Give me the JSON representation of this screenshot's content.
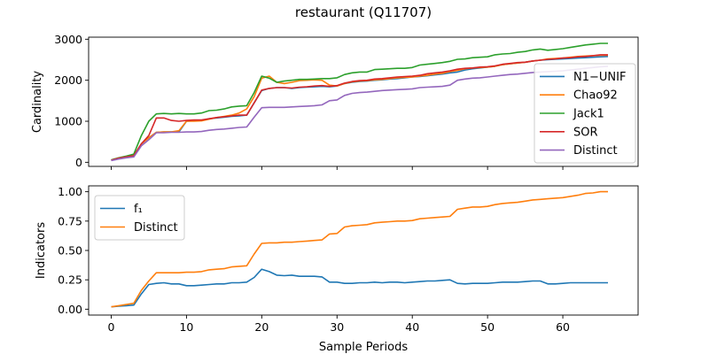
{
  "figure": {
    "title": "restaurant (Q11707)"
  },
  "chart_data": [
    {
      "type": "line",
      "xlabel": "",
      "ylabel": "Cardinality",
      "xlim": [
        -3,
        70
      ],
      "ylim": [
        -100,
        3050
      ],
      "xticks": [
        0,
        10,
        20,
        30,
        40,
        50,
        60
      ],
      "yticks": [
        0,
        1000,
        2000,
        3000
      ],
      "show_xtick_labels": false,
      "grid": false,
      "legend": "lower-right",
      "series": [
        {
          "name": "N1−UNIF",
          "color": "#1f77b4",
          "values": [
            50,
            100,
            130,
            160,
            450,
            600,
            730,
            740,
            740,
            740,
            1000,
            1010,
            1020,
            1060,
            1080,
            1100,
            1120,
            1130,
            1150,
            1450,
            1750,
            1800,
            1820,
            1820,
            1800,
            1820,
            1830,
            1840,
            1850,
            1840,
            1860,
            1920,
            1950,
            1970,
            1980,
            2000,
            2010,
            2030,
            2040,
            2060,
            2080,
            2090,
            2110,
            2130,
            2150,
            2180,
            2200,
            2250,
            2280,
            2300,
            2320,
            2340,
            2380,
            2400,
            2420,
            2440,
            2470,
            2490,
            2500,
            2510,
            2520,
            2530,
            2540,
            2550,
            2560,
            2570,
            2580
          ]
        },
        {
          "name": "Chao92",
          "color": "#ff7f0e",
          "values": [
            50,
            100,
            130,
            160,
            450,
            600,
            730,
            740,
            740,
            770,
            1000,
            1000,
            1010,
            1050,
            1090,
            1120,
            1150,
            1200,
            1300,
            1600,
            2050,
            2100,
            1950,
            1920,
            1950,
            1990,
            2000,
            2010,
            2000,
            1880,
            1860,
            1920,
            1960,
            1980,
            1990,
            2010,
            2020,
            2040,
            2060,
            2070,
            2080,
            2100,
            2120,
            2150,
            2170,
            2210,
            2240,
            2280,
            2300,
            2310,
            2320,
            2340,
            2380,
            2400,
            2420,
            2440,
            2470,
            2490,
            2520,
            2530,
            2540,
            2560,
            2580,
            2590,
            2600,
            2610,
            2610
          ]
        },
        {
          "name": "Jack1",
          "color": "#2ca02c",
          "values": [
            60,
            110,
            150,
            200,
            650,
            1000,
            1180,
            1190,
            1180,
            1190,
            1180,
            1180,
            1200,
            1260,
            1270,
            1300,
            1350,
            1370,
            1380,
            1700,
            2100,
            2050,
            1950,
            1980,
            2000,
            2020,
            2020,
            2030,
            2040,
            2040,
            2060,
            2140,
            2180,
            2200,
            2200,
            2260,
            2270,
            2280,
            2290,
            2290,
            2310,
            2370,
            2390,
            2410,
            2430,
            2460,
            2510,
            2520,
            2550,
            2560,
            2570,
            2620,
            2640,
            2650,
            2680,
            2700,
            2740,
            2760,
            2730,
            2750,
            2770,
            2800,
            2830,
            2860,
            2880,
            2900,
            2900
          ]
        },
        {
          "name": "SOR",
          "color": "#d62728",
          "values": [
            50,
            100,
            130,
            160,
            450,
            650,
            1080,
            1080,
            1020,
            1000,
            1020,
            1030,
            1030,
            1060,
            1090,
            1110,
            1130,
            1150,
            1150,
            1450,
            1760,
            1800,
            1820,
            1820,
            1810,
            1830,
            1840,
            1860,
            1870,
            1850,
            1870,
            1930,
            1970,
            1990,
            2000,
            2030,
            2040,
            2060,
            2080,
            2090,
            2100,
            2120,
            2160,
            2180,
            2200,
            2230,
            2270,
            2290,
            2300,
            2320,
            2330,
            2350,
            2390,
            2410,
            2430,
            2440,
            2470,
            2490,
            2510,
            2520,
            2540,
            2550,
            2570,
            2580,
            2600,
            2620,
            2620
          ]
        },
        {
          "name": "Distinct",
          "color": "#9467bd",
          "values": [
            40,
            80,
            110,
            130,
            400,
            550,
            720,
            720,
            730,
            730,
            740,
            740,
            750,
            780,
            800,
            810,
            830,
            850,
            860,
            1100,
            1330,
            1340,
            1340,
            1340,
            1350,
            1360,
            1370,
            1380,
            1400,
            1500,
            1520,
            1630,
            1680,
            1700,
            1710,
            1730,
            1750,
            1760,
            1770,
            1780,
            1790,
            1820,
            1830,
            1840,
            1850,
            1880,
            2000,
            2030,
            2050,
            2060,
            2080,
            2100,
            2120,
            2140,
            2150,
            2170,
            2190,
            2200,
            2210,
            2220,
            2230,
            2250,
            2270,
            2290,
            2310,
            2330,
            2340
          ]
        }
      ]
    },
    {
      "type": "line",
      "xlabel": "Sample Periods",
      "ylabel": "Indicators",
      "xlim": [
        -3,
        70
      ],
      "ylim": [
        -0.05,
        1.05
      ],
      "xticks": [
        0,
        10,
        20,
        30,
        40,
        50,
        60
      ],
      "yticks": [
        0.0,
        0.25,
        0.5,
        0.75,
        1.0
      ],
      "ytick_labels": [
        "0.00",
        "0.25",
        "0.50",
        "0.75",
        "1.00"
      ],
      "show_xtick_labels": true,
      "grid": false,
      "legend": "upper-left",
      "series": [
        {
          "name": "f₁",
          "color": "#1f77b4",
          "values": [
            0.02,
            0.025,
            0.03,
            0.035,
            0.13,
            0.21,
            0.22,
            0.225,
            0.215,
            0.215,
            0.2,
            0.2,
            0.205,
            0.21,
            0.215,
            0.215,
            0.225,
            0.225,
            0.23,
            0.27,
            0.34,
            0.32,
            0.29,
            0.285,
            0.29,
            0.28,
            0.28,
            0.28,
            0.275,
            0.23,
            0.23,
            0.22,
            0.22,
            0.225,
            0.225,
            0.23,
            0.225,
            0.23,
            0.23,
            0.225,
            0.23,
            0.235,
            0.24,
            0.24,
            0.245,
            0.25,
            0.22,
            0.215,
            0.22,
            0.22,
            0.22,
            0.225,
            0.23,
            0.23,
            0.23,
            0.235,
            0.24,
            0.24,
            0.215,
            0.215,
            0.22,
            0.225,
            0.225,
            0.225,
            0.225,
            0.225,
            0.225
          ]
        },
        {
          "name": "Distinct",
          "color": "#ff7f0e",
          "values": [
            0.02,
            0.03,
            0.04,
            0.05,
            0.16,
            0.24,
            0.31,
            0.31,
            0.31,
            0.31,
            0.315,
            0.315,
            0.32,
            0.335,
            0.34,
            0.345,
            0.36,
            0.365,
            0.37,
            0.47,
            0.56,
            0.565,
            0.565,
            0.57,
            0.57,
            0.575,
            0.58,
            0.585,
            0.59,
            0.64,
            0.645,
            0.7,
            0.71,
            0.715,
            0.72,
            0.735,
            0.74,
            0.745,
            0.75,
            0.75,
            0.755,
            0.77,
            0.775,
            0.78,
            0.785,
            0.79,
            0.85,
            0.86,
            0.87,
            0.87,
            0.875,
            0.89,
            0.9,
            0.905,
            0.91,
            0.92,
            0.93,
            0.935,
            0.94,
            0.945,
            0.95,
            0.96,
            0.97,
            0.985,
            0.99,
            1.0,
            1.0
          ]
        }
      ]
    }
  ]
}
